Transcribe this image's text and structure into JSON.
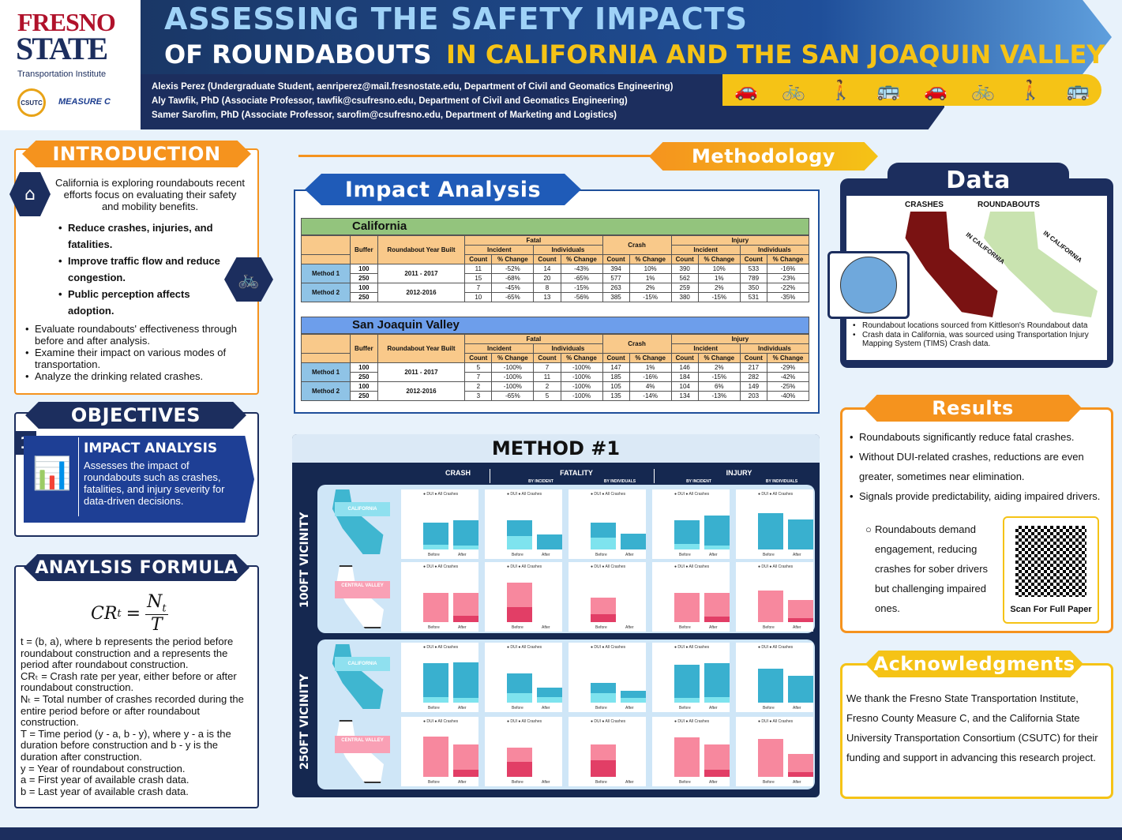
{
  "header": {
    "logo_word1": "FRESNO",
    "logo_word2": "STATE",
    "logo_subtitle": "Transportation Institute",
    "logo_csutc": "CSUTC",
    "logo_measure": "MEASURE C",
    "title_line1": "ASSESSING THE SAFETY IMPACTS",
    "title_line2a": "OF ROUNDABOUTS",
    "title_line2b": "IN CALIFORNIA AND THE SAN JOAQUIN VALLEY",
    "authors": [
      "Alexis Perez (Undergraduate Student, aenriperez@mail.fresnostate.edu, Department of Civil and Geomatics Engineering)",
      "Aly Tawfik, PhD (Associate Professor, tawfik@csufresno.edu, Department of Civil and Geomatics Engineering)",
      "Samer Sarofim, PhD (Associate Professor, sarofim@csufresno.edu, Department of Marketing and Logistics)"
    ]
  },
  "introduction": {
    "title": "INTRODUCTION",
    "lead": "California is exploring roundabouts recent efforts focus on evaluating their safety and mobility benefits.",
    "bold_points": [
      "Reduce crashes, injuries, and fatalities.",
      "Improve traffic flow and reduce congestion.",
      "Public perception affects adoption."
    ],
    "points": [
      "Evaluate roundabouts' effectiveness through before and after analysis.",
      "Examine their impact on various modes of transportation.",
      "Analyze the drinking related crashes."
    ]
  },
  "objectives": {
    "title": "OBJECTIVES",
    "number": "1",
    "item_title": "IMPACT ANALYSIS",
    "item_text": "Assesses the impact of roundabouts such as crashes, fatalities, and injury severity for data-driven decisions."
  },
  "formula": {
    "title": "ANAYLSIS FORMULA",
    "lhs": "CR",
    "lhs_sub": "t",
    "num": "N",
    "num_sub": "t",
    "den": "T",
    "lines": [
      "t = (b, a), where b represents the period before roundabout construction and a represents the period after roundabout construction.",
      "CRₜ = Crash rate per year, either before or after roundabout construction.",
      "Nₜ = Total number of crashes recorded during the entire period before or after roundabout construction.",
      "T = Time period (y - a, b - y), where y - a is the duration before construction and b - y is the duration after construction.",
      "y = Year of roundabout construction.",
      "a = First year of available crash data.",
      "b = Last year of available crash data."
    ]
  },
  "methodology": {
    "title": "Methodology",
    "impact_title": "Impact Analysis",
    "col_headers": {
      "buffer": "Buffer",
      "year_built": "Roundabout Year Built",
      "fatal": "Fatal",
      "crash": "Crash",
      "injury": "Injury",
      "incident": "Incident",
      "individuals": "Individuals",
      "count": "Count",
      "pct": "% Change"
    },
    "tables": [
      {
        "region": "California",
        "rows": [
          {
            "method": "Method 1",
            "years": "2011 - 2017",
            "buffers": [
              "100",
              "250"
            ],
            "values": [
              [
                "11",
                "-52%",
                "14",
                "-43%",
                "394",
                "10%",
                "390",
                "10%",
                "533",
                "-16%"
              ],
              [
                "15",
                "-68%",
                "20",
                "-65%",
                "577",
                "1%",
                "562",
                "1%",
                "789",
                "-23%"
              ]
            ]
          },
          {
            "method": "Method 2",
            "years": "2012-2016",
            "buffers": [
              "100",
              "250"
            ],
            "values": [
              [
                "7",
                "-45%",
                "8",
                "-15%",
                "263",
                "2%",
                "259",
                "2%",
                "350",
                "-22%"
              ],
              [
                "10",
                "-65%",
                "13",
                "-56%",
                "385",
                "-15%",
                "380",
                "-15%",
                "531",
                "-35%"
              ]
            ]
          }
        ]
      },
      {
        "region": "San Joaquin Valley",
        "rows": [
          {
            "method": "Method 1",
            "years": "2011 - 2017",
            "buffers": [
              "100",
              "250"
            ],
            "values": [
              [
                "5",
                "-100%",
                "7",
                "-100%",
                "147",
                "1%",
                "146",
                "2%",
                "217",
                "-29%"
              ],
              [
                "7",
                "-100%",
                "11",
                "-100%",
                "185",
                "-16%",
                "184",
                "-15%",
                "282",
                "-42%"
              ]
            ]
          },
          {
            "method": "Method 2",
            "years": "2012-2016",
            "buffers": [
              "100",
              "250"
            ],
            "values": [
              [
                "2",
                "-100%",
                "2",
                "-100%",
                "105",
                "4%",
                "104",
                "6%",
                "149",
                "-25%"
              ],
              [
                "3",
                "-65%",
                "5",
                "-100%",
                "135",
                "-14%",
                "134",
                "-13%",
                "203",
                "-40%"
              ]
            ]
          }
        ]
      }
    ],
    "method1": {
      "title": "METHOD #1",
      "groups": [
        "CRASH",
        "FATALITY",
        "INJURY"
      ],
      "subgroups": [
        "BY INCIDENT",
        "BY INDIVIDUALS",
        "BY INCIDENT",
        "BY INDIVIDUALS"
      ],
      "vicinity": [
        "100FT VICINITY",
        "250FT VICINITY"
      ],
      "region_labels": [
        "CALIFORNIA",
        "CENTRAL VALLEY"
      ],
      "legend": [
        "DUI",
        "All Crashes"
      ],
      "x_labels": [
        "Before",
        "After"
      ]
    }
  },
  "data": {
    "title": "Data",
    "map_labels": [
      "CRASHES",
      "ROUNDABOUTS",
      "IN CALIFORNIA",
      "IN CALIFORNIA"
    ],
    "notes": [
      "Roundabout locations sourced from Kittleson's Roundabout data",
      "Crash data in California, was sourced using Transportation Injury Mapping System (TIMS) Crash data."
    ]
  },
  "results": {
    "title": "Results",
    "points": [
      "Roundabouts significantly reduce fatal crashes.",
      "Without DUI-related crashes, reductions are even greater, sometimes near elimination.",
      "Signals provide predictability, aiding impaired drivers."
    ],
    "sub_point": "Roundabouts demand engagement, reducing crashes for sober drivers but challenging impaired ones.",
    "qr_caption": "Scan For Full Paper"
  },
  "acknowledgments": {
    "title": "Acknowledgments",
    "text": "We thank the Fresno State Transportation Institute, Fresno County Measure C, and the California State University Transportation Consortium (CSUTC) for their funding and support in advancing this research project."
  },
  "colors": {
    "navy": "#1c2e5e",
    "orange": "#f5931e",
    "yellow": "#f5c316",
    "blue": "#1f4f9a"
  }
}
